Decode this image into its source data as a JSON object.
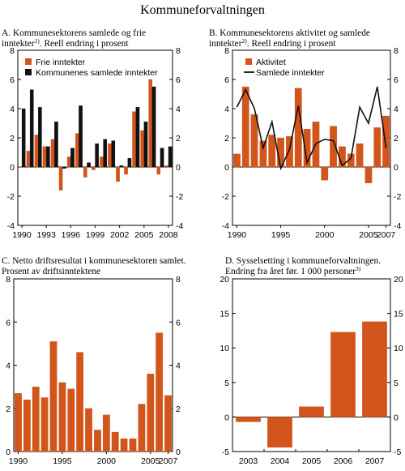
{
  "page_title": "Kommuneforvaltningen",
  "colors": {
    "bar": "#d2561c",
    "bar_dark": "#111111",
    "line": "#111111"
  },
  "chart_data": [
    {
      "id": "A",
      "type": "bar",
      "title": "A. Kommunesektorens samlede og frie",
      "title_line2": "inntekter",
      "title_sup": "1)",
      "title_line2_end": ". Reell endring i prosent",
      "x": [
        1990,
        1991,
        1992,
        1993,
        1994,
        1995,
        1996,
        1997,
        1998,
        1999,
        2000,
        2001,
        2002,
        2003,
        2004,
        2005,
        2006,
        2007,
        2008
      ],
      "xticks": [
        1990,
        1993,
        1996,
        1999,
        2002,
        2005,
        2008
      ],
      "ylim": [
        -4,
        8
      ],
      "yticks": [
        -4,
        -2,
        0,
        2,
        4,
        6,
        8
      ],
      "ytick_labels": [
        "-4",
        "-2",
        "0",
        "2",
        "4",
        "6",
        "8"
      ],
      "legend_position": "top-left",
      "series": [
        {
          "name": "Frie inntekter",
          "color": "#d2561c",
          "values": [
            0,
            1.1,
            2.2,
            1.4,
            1.9,
            -1.6,
            0.7,
            2.3,
            -0.7,
            -0.2,
            0.7,
            1.6,
            -1.0,
            -0.5,
            3.8,
            2.5,
            6.0,
            -0.5,
            0.1
          ]
        },
        {
          "name": "Kommunenes samlede inntekter",
          "color": "#111111",
          "values": [
            4.0,
            5.3,
            4.1,
            1.4,
            3.1,
            -0.1,
            1.3,
            4.2,
            0.3,
            1.6,
            1.9,
            1.8,
            0.1,
            0.6,
            4.1,
            3.1,
            5.5,
            1.3,
            1.4
          ]
        }
      ]
    },
    {
      "id": "B",
      "type": "bar",
      "title": "B. Kommunesektorens aktivitet og samlede",
      "title_line2": "inntekter",
      "title_sup": "2)",
      "title_line2_end": ". Reell endring i prosent",
      "x": [
        1990,
        1991,
        1992,
        1993,
        1994,
        1995,
        1996,
        1997,
        1998,
        1999,
        2000,
        2001,
        2002,
        2003,
        2004,
        2005,
        2006,
        2007
      ],
      "xticks": [
        1990,
        1995,
        2000,
        2005,
        2007
      ],
      "ylim": [
        -4,
        8
      ],
      "yticks": [
        -4,
        -2,
        0,
        2,
        4,
        6,
        8
      ],
      "ytick_labels": [
        "-4",
        "-2",
        "0",
        "2",
        "4",
        "6",
        "8"
      ],
      "legend_position": "top-left",
      "series": [
        {
          "name": "Aktivitet",
          "kind": "bar",
          "color": "#d2561c",
          "values": [
            0.9,
            5.5,
            3.6,
            1.8,
            2.2,
            2.0,
            2.1,
            5.4,
            2.6,
            3.1,
            -0.9,
            2.8,
            1.4,
            0.9,
            1.6,
            -1.1,
            2.7,
            3.5
          ]
        },
        {
          "name": "Samlede inntekter",
          "kind": "line",
          "color": "#111111",
          "values": [
            4.1,
            5.3,
            4.0,
            1.3,
            3.1,
            -0.1,
            1.2,
            4.2,
            0.3,
            1.6,
            1.9,
            1.8,
            0.1,
            0.6,
            4.1,
            3.0,
            5.5,
            1.3
          ]
        }
      ]
    },
    {
      "id": "C",
      "type": "bar",
      "title": "C. Netto driftsresultat i kommunesektoren samlet.",
      "title_line2": "Prosent av driftsinntektene",
      "title_sup": "",
      "title_line2_end": "",
      "x": [
        1990,
        1991,
        1992,
        1993,
        1994,
        1995,
        1996,
        1997,
        1998,
        1999,
        2000,
        2001,
        2002,
        2003,
        2004,
        2005,
        2006,
        2007
      ],
      "xticks": [
        1990,
        1995,
        2000,
        2005,
        2007
      ],
      "ylim": [
        0,
        8
      ],
      "yticks": [
        0,
        2,
        4,
        6,
        8
      ],
      "ytick_labels": [
        "0",
        "2",
        "4",
        "6",
        "8"
      ],
      "series": [
        {
          "name": "",
          "color": "#d2561c",
          "values": [
            2.7,
            2.4,
            3.0,
            2.5,
            5.1,
            3.2,
            2.9,
            4.6,
            2.0,
            1.0,
            1.7,
            0.9,
            0.6,
            0.6,
            2.2,
            3.6,
            5.5,
            2.6
          ]
        }
      ]
    },
    {
      "id": "D",
      "type": "bar",
      "title": "D. Sysselsetting i kommuneforvaltningen.",
      "title_line2": "Endring fra året før. 1 000 personer",
      "title_sup": "3)",
      "title_line2_end": "",
      "categories": [
        "2003",
        "2004",
        "2005",
        "2006",
        "2007"
      ],
      "ylim": [
        -5,
        20
      ],
      "yticks": [
        -5,
        0,
        5,
        10,
        15,
        20
      ],
      "ytick_labels": [
        "-5",
        "0",
        "5",
        "10",
        "15",
        "20"
      ],
      "series": [
        {
          "name": "",
          "color": "#d2561c",
          "values": [
            -0.7,
            -4.4,
            1.5,
            12.3,
            13.8
          ]
        }
      ]
    }
  ]
}
